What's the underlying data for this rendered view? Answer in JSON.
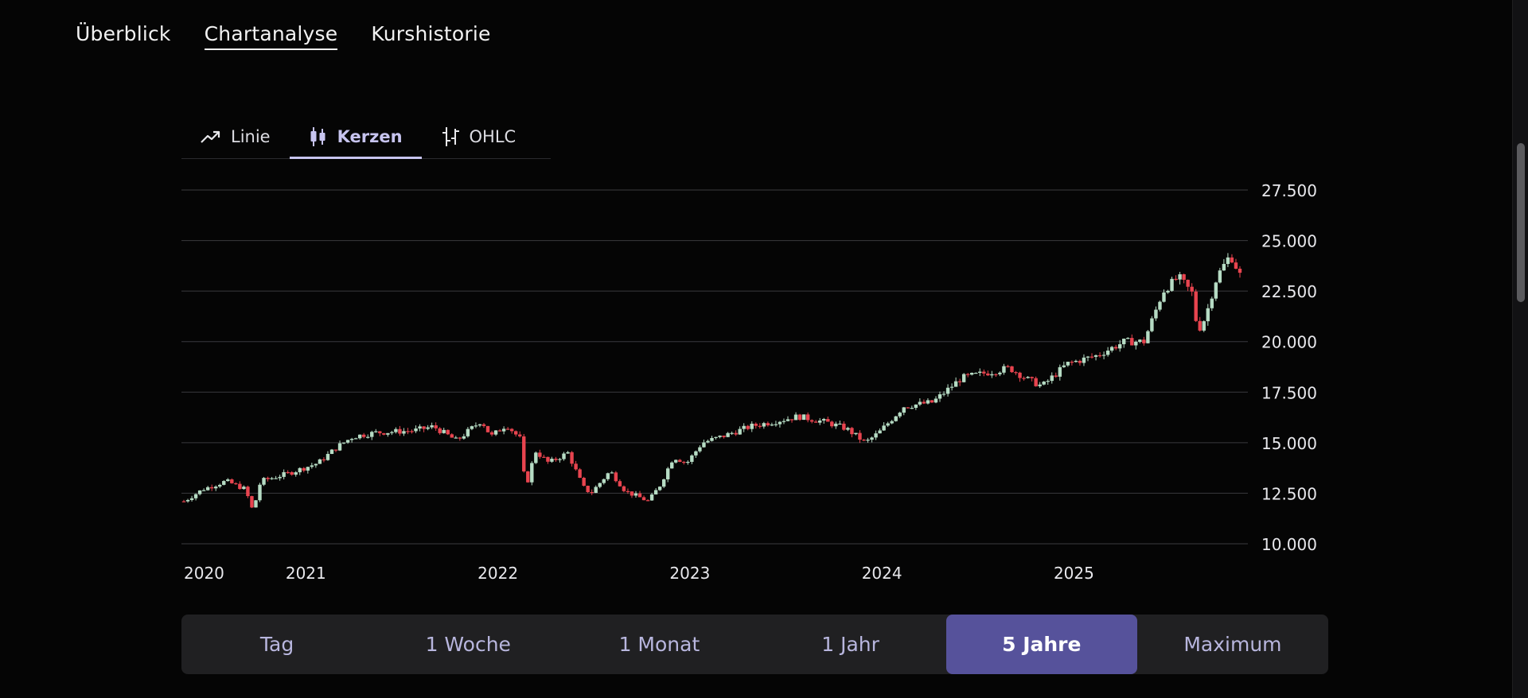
{
  "nav": {
    "tabs": [
      {
        "label": "Überblick",
        "active": false
      },
      {
        "label": "Chartanalyse",
        "active": true
      },
      {
        "label": "Kurshistorie",
        "active": false
      }
    ]
  },
  "chart_types": {
    "tabs": [
      {
        "label": "Linie",
        "icon": "trend-line-icon",
        "active": false
      },
      {
        "label": "Kerzen",
        "icon": "candlestick-icon",
        "active": true
      },
      {
        "label": "OHLC",
        "icon": "ohlc-icon",
        "active": false
      }
    ],
    "accent": "#c7c4ef"
  },
  "chart_data": {
    "type": "candlestick",
    "y_axis": {
      "ticks": [
        "27.500",
        "25.000",
        "22.500",
        "20.000",
        "17.500",
        "15.000",
        "12.500",
        "10.000"
      ],
      "tick_values": [
        27500,
        25000,
        22500,
        20000,
        17500,
        15000,
        12500,
        10000
      ],
      "ylim": [
        10000,
        27500
      ],
      "position": "right"
    },
    "x_axis": {
      "ticks": [
        "2020",
        "2021",
        "2022",
        "2023",
        "2024",
        "2025"
      ],
      "tick_values": [
        2020.0,
        2020.53,
        2021.53,
        2022.53,
        2023.53,
        2024.53
      ],
      "xlim": [
        2020.0,
        2025.5
      ]
    },
    "grid": true,
    "colors": {
      "up": "#b6dcc4",
      "down": "#e8444f",
      "grid": "#3a3a3e"
    },
    "price_path": [
      [
        2020.0,
        12100
      ],
      [
        2020.1,
        12700
      ],
      [
        2020.22,
        13100
      ],
      [
        2020.32,
        12700
      ],
      [
        2020.36,
        11600
      ],
      [
        2020.4,
        13100
      ],
      [
        2020.55,
        13500
      ],
      [
        2020.7,
        14000
      ],
      [
        2020.8,
        14800
      ],
      [
        2020.88,
        15300
      ],
      [
        2021.0,
        15500
      ],
      [
        2021.2,
        15600
      ],
      [
        2021.3,
        15800
      ],
      [
        2021.42,
        15100
      ],
      [
        2021.55,
        16100
      ],
      [
        2021.6,
        15300
      ],
      [
        2021.68,
        15900
      ],
      [
        2021.75,
        15200
      ],
      [
        2021.78,
        12700
      ],
      [
        2021.83,
        14600
      ],
      [
        2021.9,
        14000
      ],
      [
        2022.0,
        14500
      ],
      [
        2022.08,
        12800
      ],
      [
        2022.12,
        12500
      ],
      [
        2022.22,
        13600
      ],
      [
        2022.3,
        12600
      ],
      [
        2022.42,
        12100
      ],
      [
        2022.48,
        12900
      ],
      [
        2022.55,
        14300
      ],
      [
        2022.62,
        14000
      ],
      [
        2022.7,
        15000
      ],
      [
        2022.8,
        15300
      ],
      [
        2022.95,
        15800
      ],
      [
        2023.05,
        16000
      ],
      [
        2023.2,
        16300
      ],
      [
        2023.35,
        16000
      ],
      [
        2023.45,
        15700
      ],
      [
        2023.55,
        15000
      ],
      [
        2023.62,
        15500
      ],
      [
        2023.75,
        16800
      ],
      [
        2023.9,
        17000
      ],
      [
        2024.05,
        18200
      ],
      [
        2024.15,
        18400
      ],
      [
        2024.3,
        18700
      ],
      [
        2024.4,
        18100
      ],
      [
        2024.47,
        17800
      ],
      [
        2024.6,
        18900
      ],
      [
        2024.75,
        19300
      ],
      [
        2024.9,
        20000
      ],
      [
        2025.0,
        20000
      ],
      [
        2025.1,
        22500
      ],
      [
        2025.18,
        23200
      ],
      [
        2025.25,
        22400
      ],
      [
        2025.28,
        20500
      ],
      [
        2025.32,
        21200
      ],
      [
        2025.38,
        23200
      ],
      [
        2025.45,
        24300
      ],
      [
        2025.5,
        23300
      ]
    ]
  },
  "ranges": {
    "options": [
      {
        "label": "Tag",
        "active": false
      },
      {
        "label": "1 Woche",
        "active": false
      },
      {
        "label": "1 Monat",
        "active": false
      },
      {
        "label": "1 Jahr",
        "active": false
      },
      {
        "label": "5 Jahre",
        "active": true
      },
      {
        "label": "Maximum",
        "active": false
      }
    ],
    "accent": "#56529b"
  }
}
